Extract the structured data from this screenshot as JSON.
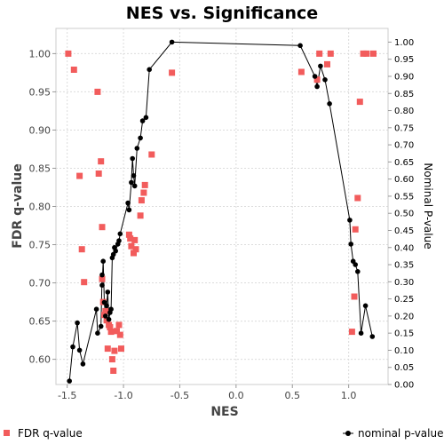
{
  "chart_data": {
    "type": "scatter",
    "title": "NES vs. Significance",
    "xlabel": "NES",
    "ylabel": "FDR q-value",
    "y2label": "Nominal P-value",
    "xlim": [
      -1.6,
      1.35
    ],
    "ylim": [
      0.567,
      1.033
    ],
    "y2lim": [
      0.0,
      1.04
    ],
    "xticks": [
      -1.5,
      -1.0,
      -0.5,
      0.0,
      0.5,
      1.0
    ],
    "xtick_labels": [
      "-1.5",
      "-1.0",
      "-0.5",
      "0.0",
      "0.5",
      "1.0"
    ],
    "yticks": [
      0.6,
      0.65,
      0.7,
      0.75,
      0.8,
      0.85,
      0.9,
      0.95,
      1.0
    ],
    "ytick_labels": [
      "0.60",
      "0.65",
      "0.70",
      "0.75",
      "0.80",
      "0.85",
      "0.90",
      "0.95",
      "1.00"
    ],
    "y2ticks": [
      0.0,
      0.05,
      0.1,
      0.15,
      0.2,
      0.25,
      0.3,
      0.35,
      0.4,
      0.45,
      0.5,
      0.55,
      0.6,
      0.65,
      0.7,
      0.75,
      0.8,
      0.85,
      0.9,
      0.95,
      1.0
    ],
    "y2tick_labels": [
      "0.00",
      "0.05",
      "0.10",
      "0.15",
      "0.20",
      "0.25",
      "0.30",
      "0.35",
      "0.40",
      "0.45",
      "0.50",
      "0.55",
      "0.60",
      "0.65",
      "0.70",
      "0.75",
      "0.80",
      "0.85",
      "0.90",
      "0.95",
      "1.00"
    ],
    "grid": true,
    "legend_position": "bottom",
    "series": [
      {
        "name": "FDR q-value",
        "axis": "left",
        "marker": "square",
        "color": "#f25c5c",
        "points": [
          [
            -1.49,
            1.0
          ],
          [
            -1.44,
            0.979
          ],
          [
            -1.39,
            0.84
          ],
          [
            -1.37,
            0.744
          ],
          [
            -1.35,
            0.701
          ],
          [
            -1.23,
            0.95
          ],
          [
            -1.22,
            0.843
          ],
          [
            -1.2,
            0.859
          ],
          [
            -1.19,
            0.773
          ],
          [
            -1.19,
            0.705
          ],
          [
            -1.18,
            0.675
          ],
          [
            -1.17,
            0.658
          ],
          [
            -1.16,
            0.663
          ],
          [
            -1.15,
            0.651
          ],
          [
            -1.14,
            0.614
          ],
          [
            -1.13,
            0.645
          ],
          [
            -1.12,
            0.642
          ],
          [
            -1.11,
            0.636
          ],
          [
            -1.1,
            0.6
          ],
          [
            -1.09,
            0.585
          ],
          [
            -1.08,
            0.611
          ],
          [
            -1.06,
            0.637
          ],
          [
            -1.04,
            0.645
          ],
          [
            -1.03,
            0.632
          ],
          [
            -1.02,
            0.614
          ],
          [
            -0.95,
            0.763
          ],
          [
            -0.94,
            0.758
          ],
          [
            -0.93,
            0.748
          ],
          [
            -0.91,
            0.739
          ],
          [
            -0.9,
            0.756
          ],
          [
            -0.89,
            0.744
          ],
          [
            -0.85,
            0.788
          ],
          [
            -0.84,
            0.808
          ],
          [
            -0.82,
            0.818
          ],
          [
            -0.81,
            0.828
          ],
          [
            -0.75,
            0.868
          ],
          [
            -0.57,
            0.975
          ],
          [
            0.58,
            0.976
          ],
          [
            0.72,
            0.966
          ],
          [
            0.74,
            1.0
          ],
          [
            0.81,
            0.986
          ],
          [
            0.84,
            1.0
          ],
          [
            1.03,
            0.636
          ],
          [
            1.05,
            0.682
          ],
          [
            1.06,
            0.77
          ],
          [
            1.08,
            0.811
          ],
          [
            1.1,
            0.937
          ],
          [
            1.13,
            1.0
          ],
          [
            1.16,
            1.0
          ],
          [
            1.22,
            1.0
          ]
        ]
      },
      {
        "name": "nominal p-value",
        "axis": "right",
        "marker": "circle",
        "color": "#000000",
        "points": [
          [
            -1.48,
            0.01
          ],
          [
            -1.45,
            0.11
          ],
          [
            -1.41,
            0.18
          ],
          [
            -1.39,
            0.1
          ],
          [
            -1.36,
            0.06
          ],
          [
            -1.24,
            0.22
          ],
          [
            -1.23,
            0.15
          ],
          [
            -1.2,
            0.17
          ],
          [
            -1.19,
            0.32
          ],
          [
            -1.19,
            0.29
          ],
          [
            -1.18,
            0.36
          ],
          [
            -1.17,
            0.24
          ],
          [
            -1.16,
            0.2
          ],
          [
            -1.15,
            0.23
          ],
          [
            -1.14,
            0.27
          ],
          [
            -1.13,
            0.19
          ],
          [
            -1.12,
            0.21
          ],
          [
            -1.11,
            0.22
          ],
          [
            -1.1,
            0.37
          ],
          [
            -1.09,
            0.38
          ],
          [
            -1.08,
            0.4
          ],
          [
            -1.07,
            0.39
          ],
          [
            -1.05,
            0.41
          ],
          [
            -1.04,
            0.42
          ],
          [
            -1.03,
            0.44
          ],
          [
            -0.96,
            0.53
          ],
          [
            -0.95,
            0.51
          ],
          [
            -0.93,
            0.59
          ],
          [
            -0.92,
            0.66
          ],
          [
            -0.91,
            0.61
          ],
          [
            -0.9,
            0.58
          ],
          [
            -0.88,
            0.69
          ],
          [
            -0.85,
            0.72
          ],
          [
            -0.83,
            0.77
          ],
          [
            -0.8,
            0.78
          ],
          [
            -0.77,
            0.92
          ],
          [
            -0.57,
            1.0
          ],
          [
            0.57,
            0.99
          ],
          [
            0.7,
            0.9
          ],
          [
            0.72,
            0.87
          ],
          [
            0.75,
            0.93
          ],
          [
            0.79,
            0.89
          ],
          [
            0.83,
            0.82
          ],
          [
            1.01,
            0.48
          ],
          [
            1.02,
            0.41
          ],
          [
            1.04,
            0.36
          ],
          [
            1.06,
            0.35
          ],
          [
            1.08,
            0.33
          ],
          [
            1.11,
            0.15
          ],
          [
            1.15,
            0.23
          ],
          [
            1.21,
            0.14
          ]
        ]
      }
    ]
  }
}
